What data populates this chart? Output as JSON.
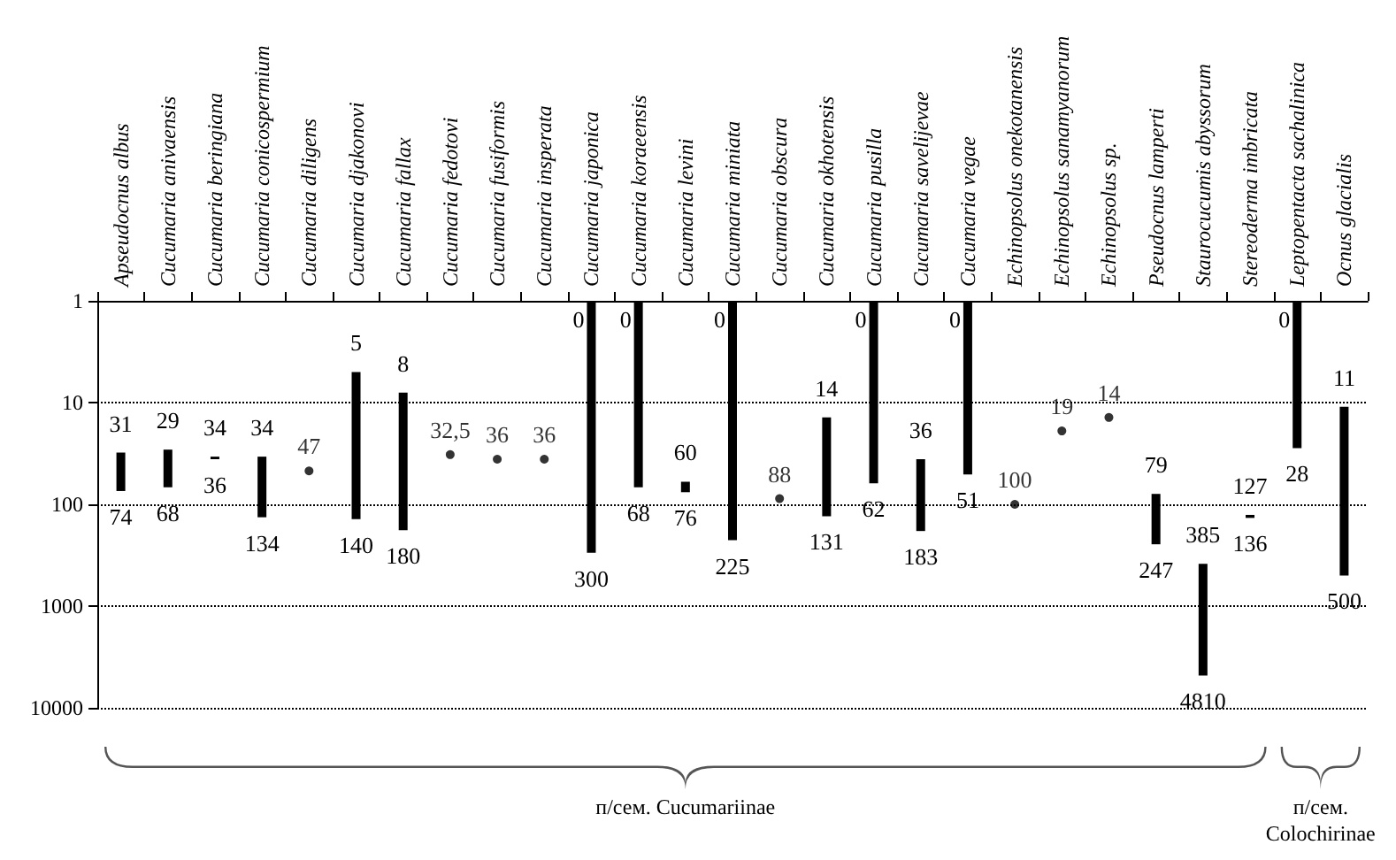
{
  "chart_data": {
    "type": "bar",
    "categories": [
      "Apseudocnus albus",
      "Cucumaria anivaensis",
      "Cucumaria beringiana",
      "Cucumaria conicospermium",
      "Cucumaria diligens",
      "Cucumaria djakonovi",
      "Cucumaria fallax",
      "Cucumaria fedotovi",
      "Cucumaria fusiformis",
      "Cucumaria insperata",
      "Cucumaria japonica",
      "Cucumaria koraeensis",
      "Cucumaria levini",
      "Cucumaria miniata",
      "Cucumaria obscura",
      "Cucumaria okhotensis",
      "Cucumaria pusilla",
      "Cucumaria savelijevae",
      "Cucumaria vegae",
      "Echinopsolus onekotanensis",
      "Echinopsolus sanamyanorum",
      "Echinopsolus sp.",
      "Pseudocnus lamperti",
      "Staurocucumis abyssorum",
      "Stereoderma imbricata",
      "Leptopentacta sachalinica",
      "Ocnus glacialis"
    ],
    "series": [
      {
        "color": "#000000",
        "base": [
          31,
          29,
          34,
          34,
          null,
          5,
          8,
          null,
          null,
          null,
          0,
          0,
          60,
          0,
          null,
          14,
          0,
          36,
          0,
          null,
          null,
          null,
          79,
          385,
          127,
          0,
          11
        ],
        "values": [
          43,
          39,
          2,
          100,
          null,
          135,
          172,
          null,
          null,
          null,
          300,
          68,
          16,
          225,
          null,
          117,
          62,
          147,
          51,
          null,
          null,
          null,
          168,
          4425,
          9,
          28,
          489
        ]
      },
      {
        "type": "scatter",
        "color": "#000000",
        "marker": "circle",
        "data_labels": true,
        "values": [
          null,
          null,
          null,
          null,
          47,
          null,
          null,
          32.5,
          36,
          36,
          null,
          null,
          null,
          null,
          88,
          null,
          null,
          null,
          null,
          100,
          19,
          14,
          null,
          null,
          null,
          null,
          null
        ],
        "value_labels": [
          null,
          null,
          null,
          null,
          "47",
          null,
          null,
          "32,5",
          "36",
          "36",
          null,
          null,
          null,
          null,
          "88",
          null,
          null,
          null,
          null,
          "100",
          "19",
          "14",
          null,
          null,
          null,
          null,
          null
        ]
      }
    ],
    "log": true,
    "ylim": [
      10000,
      1
    ],
    "yticks": [
      1,
      10,
      100,
      1000,
      10000
    ],
    "grid": "y",
    "line_style": "dotted",
    "annotations": [
      "31",
      "74",
      "29",
      "68",
      "34",
      "36",
      "34",
      "134",
      "5",
      "140",
      "8",
      "180",
      "0",
      "300",
      "0",
      "68",
      "60",
      "76",
      "0",
      "225",
      "14",
      "131",
      "0",
      "62",
      "36",
      "183",
      "0",
      "51",
      "79",
      "247",
      "385",
      "4810",
      "127",
      "136",
      "0",
      "28",
      "11",
      "500",
      "п/сем. Cucumariinae",
      "п/сем. Colochirinae"
    ]
  }
}
